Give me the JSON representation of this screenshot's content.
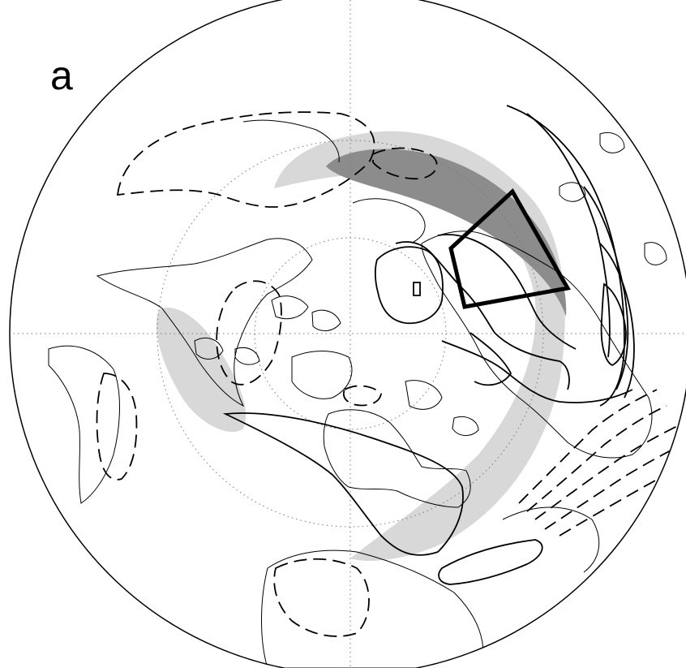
{
  "figure": {
    "panel_label": "a",
    "projection": "polar-stereographic-north",
    "colors": {
      "background": "#ffffff",
      "line": "#000000",
      "shade_light": "#d8d8d8",
      "shade_dark": "#8c8c8c"
    }
  }
}
